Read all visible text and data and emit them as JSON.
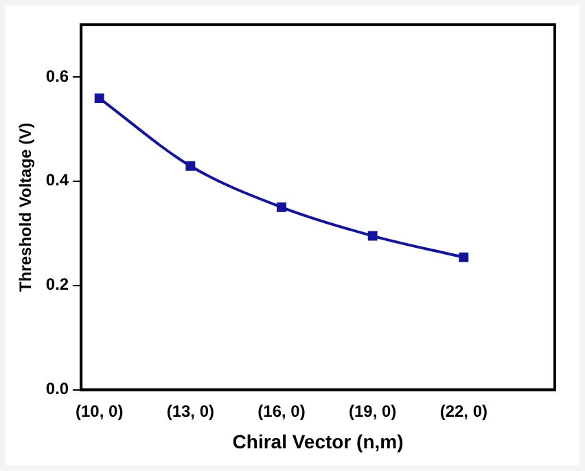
{
  "chart_data": {
    "type": "line",
    "xlabel": "Chiral Vector (n,m)",
    "ylabel": "Threshold Voltage (V)",
    "categories": [
      "(10, 0)",
      "(13, 0)",
      "(16, 0)",
      "(19, 0)",
      "(22, 0)"
    ],
    "series": [
      {
        "color": "#14149a",
        "values": [
          0.559,
          0.429,
          0.35,
          0.295,
          0.254
        ]
      }
    ],
    "ylim": [
      0,
      0.7
    ],
    "yticks": [
      {
        "value": 0,
        "label": "0.0"
      },
      0.2,
      0.4,
      0.6
    ],
    "grid": false,
    "legend": false,
    "marker": "square",
    "line_style": "solid"
  }
}
